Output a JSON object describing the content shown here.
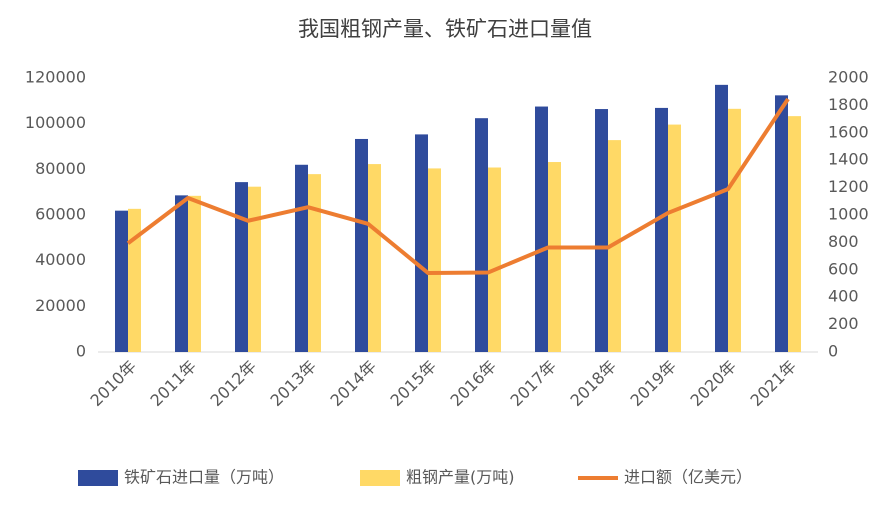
{
  "chart_data": {
    "type": "bar_line",
    "title": "我国粗钢产量、铁矿石进口量值",
    "categories": [
      "2010年",
      "2011年",
      "2012年",
      "2013年",
      "2014年",
      "2015年",
      "2016年",
      "2017年",
      "2018年",
      "2019年",
      "2020年",
      "2021年"
    ],
    "series": [
      {
        "name": "铁矿石进口量（万吨）",
        "color": "#2f4b9c",
        "type": "bar",
        "values": [
          61900,
          68600,
          74400,
          82000,
          93300,
          95300,
          102400,
          107500,
          106400,
          106900,
          117000,
          112400
        ]
      },
      {
        "name": "粗钢产量(万吨)",
        "color": "#ffd966",
        "type": "bar",
        "values": [
          62700,
          68400,
          72400,
          77900,
          82300,
          80400,
          80800,
          83200,
          92800,
          99600,
          106500,
          103300
        ]
      },
      {
        "name": "进口额（亿美元）",
        "color": "#ed7d31",
        "type": "line",
        "axis": "y2",
        "values": [
          794,
          1124,
          958,
          1057,
          936,
          577,
          580,
          763,
          763,
          1015,
          1189,
          1847
        ]
      }
    ],
    "ylim": [
      0,
      120000
    ],
    "yticks": [
      0,
      20000,
      40000,
      60000,
      80000,
      100000,
      120000
    ],
    "y2lim": [
      0,
      2000
    ],
    "y2ticks": [
      0,
      200,
      400,
      600,
      800,
      1000,
      1200,
      1400,
      1600,
      1800,
      2000
    ],
    "grid": false
  }
}
